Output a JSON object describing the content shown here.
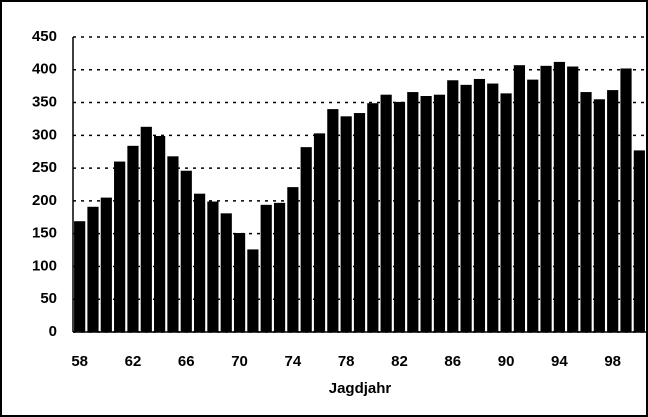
{
  "chart_data": {
    "type": "bar",
    "x_label": "Jagdjahr",
    "categories": [
      "58",
      null,
      null,
      null,
      "62",
      null,
      null,
      null,
      "66",
      null,
      null,
      null,
      "70",
      null,
      null,
      null,
      "74",
      null,
      null,
      null,
      "78",
      null,
      null,
      null,
      "82",
      null,
      null,
      null,
      "86",
      null,
      null,
      null,
      "90",
      null,
      null,
      null,
      "94",
      null,
      null,
      null,
      "98",
      null,
      null
    ],
    "values": [
      169,
      191,
      205,
      260,
      284,
      313,
      299,
      268,
      246,
      211,
      199,
      181,
      151,
      126,
      194,
      197,
      221,
      282,
      303,
      340,
      329,
      334,
      349,
      362,
      351,
      366,
      360,
      362,
      384,
      377,
      386,
      379,
      364,
      407,
      385,
      406,
      412,
      405,
      366,
      355,
      369,
      402,
      277
    ],
    "color": "#000000",
    "ylim": [
      0,
      450
    ],
    "yticks": [
      0,
      50,
      100,
      150,
      200,
      250,
      300,
      350,
      400,
      450
    ],
    "grid": true
  }
}
